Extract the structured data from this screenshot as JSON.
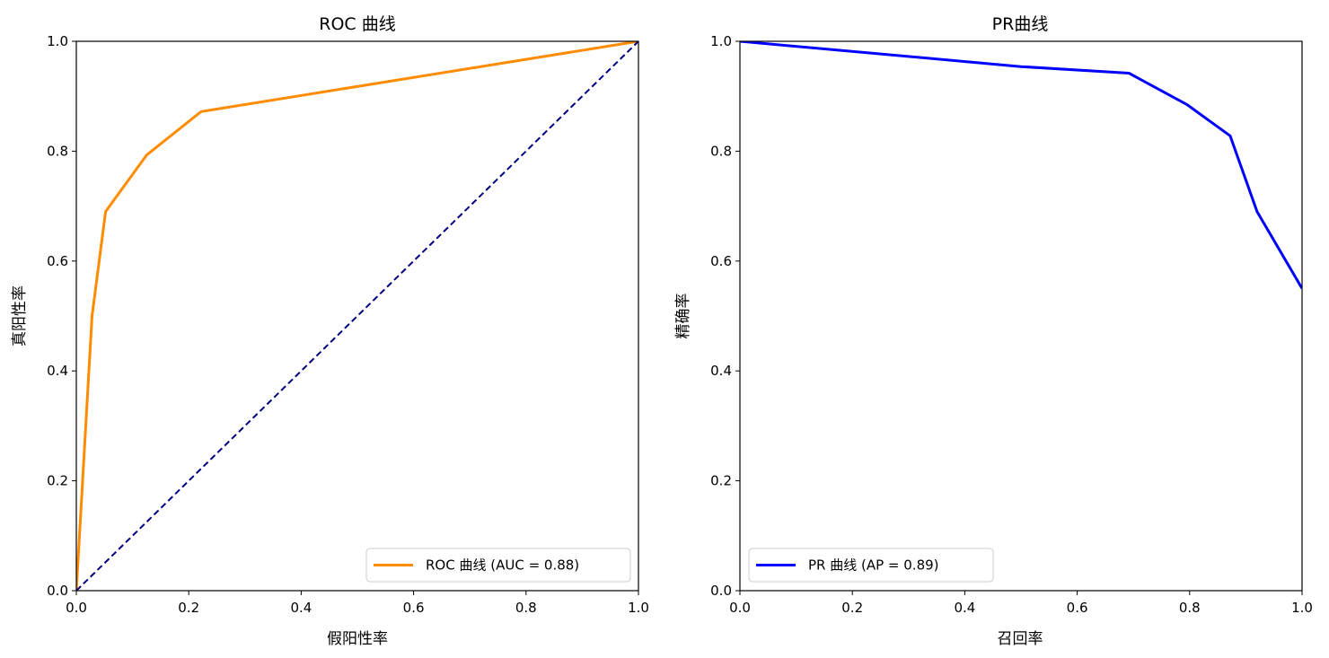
{
  "chart_data": [
    {
      "type": "line",
      "title": "ROC 曲线",
      "xlabel": "假阳性率",
      "ylabel": "真阳性率",
      "xlim": [
        0.0,
        1.0
      ],
      "ylim": [
        0.0,
        1.0
      ],
      "xticks": [
        "0.0",
        "0.2",
        "0.4",
        "0.6",
        "0.8",
        "1.0"
      ],
      "yticks": [
        "0.0",
        "0.2",
        "0.4",
        "0.6",
        "0.8",
        "1.0"
      ],
      "grid": false,
      "legend_position": "bottom-right",
      "series": [
        {
          "name": "ROC 曲线 (AUC = 0.88)",
          "color": "#ff8c00",
          "style": "solid",
          "x": [
            0.0,
            0.028,
            0.052,
            0.125,
            0.222,
            1.0
          ],
          "y": [
            0.0,
            0.5,
            0.69,
            0.793,
            0.872,
            1.0
          ]
        },
        {
          "name": "",
          "color": "#000080",
          "style": "dashed",
          "x": [
            0.0,
            1.0
          ],
          "y": [
            0.0,
            1.0
          ]
        }
      ]
    },
    {
      "type": "line",
      "title": "PR曲线",
      "xlabel": "召回率",
      "ylabel": "精确率",
      "xlim": [
        0.0,
        1.0
      ],
      "ylim": [
        0.0,
        1.0
      ],
      "xticks": [
        "0.0",
        "0.2",
        "0.4",
        "0.6",
        "0.8",
        "1.0"
      ],
      "yticks": [
        "0.0",
        "0.2",
        "0.4",
        "0.6",
        "0.8",
        "1.0"
      ],
      "grid": false,
      "legend_position": "bottom-left",
      "series": [
        {
          "name": "PR 曲线 (AP = 0.89)",
          "color": "#0000ff",
          "style": "solid",
          "x": [
            0.0,
            0.5,
            0.692,
            0.795,
            0.872,
            0.92,
            1.0
          ],
          "y": [
            1.0,
            0.954,
            0.942,
            0.885,
            0.828,
            0.69,
            0.55
          ]
        }
      ]
    }
  ]
}
